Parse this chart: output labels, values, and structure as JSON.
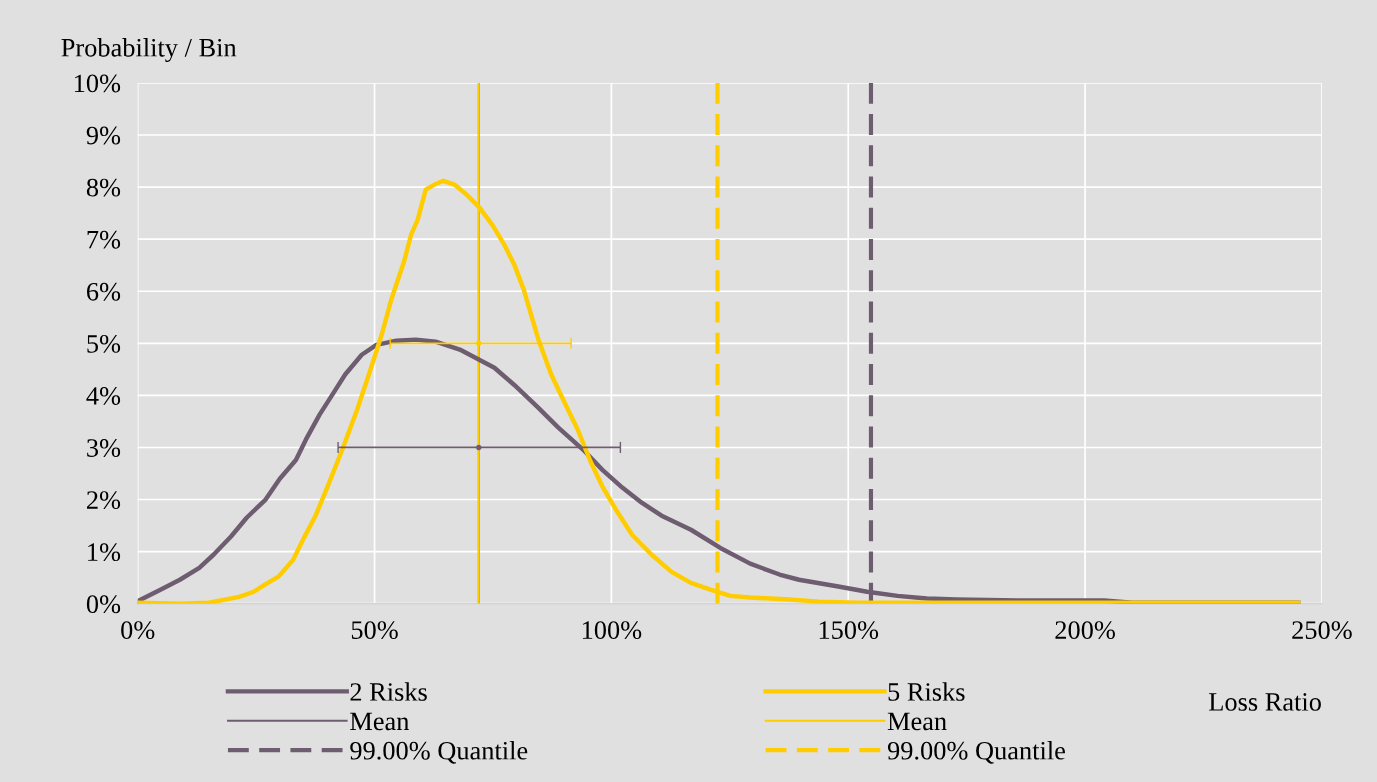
{
  "chart_data": {
    "type": "line",
    "xlabel": "Loss Ratio",
    "ylabel": "Probability / Bin",
    "xlim": [
      0,
      250
    ],
    "xticks": [
      {
        "value": 0,
        "label": "0%"
      },
      {
        "value": 50,
        "label": "50%"
      },
      {
        "value": 100,
        "label": "100%"
      },
      {
        "value": 150,
        "label": "150%"
      },
      {
        "value": 200,
        "label": "200%"
      },
      {
        "value": 250,
        "label": "250%"
      }
    ],
    "ylim": [
      0,
      10
    ],
    "yticks": [
      {
        "value": 0,
        "label": "0%"
      },
      {
        "value": 1,
        "label": "1%"
      },
      {
        "value": 2,
        "label": "2%"
      },
      {
        "value": 3,
        "label": "3%"
      },
      {
        "value": 4,
        "label": "4%"
      },
      {
        "value": 5,
        "label": "5%"
      },
      {
        "value": 6,
        "label": "6%"
      },
      {
        "value": 7,
        "label": "7%"
      },
      {
        "value": 8,
        "label": "8%"
      },
      {
        "value": 9,
        "label": "9%"
      },
      {
        "value": 10,
        "label": "10%"
      }
    ],
    "grid": true,
    "legend": "bottom",
    "marker": "none",
    "line_style": "solid",
    "series": [
      {
        "name": "2 Risks",
        "color": "#6e5c70",
        "x": [
          0,
          4.8,
          8.9,
          13,
          16,
          19.7,
          23,
          27,
          30,
          33.4,
          35.5,
          38.4,
          41,
          43.8,
          47.3,
          50.4,
          54.6,
          58.7,
          62.9,
          68,
          72.2,
          75.3,
          79.5,
          84.6,
          88.8,
          94,
          98.1,
          102.3,
          106.4,
          110.6,
          116.8,
          123,
          129.3,
          135.5,
          139.6,
          147.9,
          154,
          160.4,
          166.6,
          172.8,
          187.3,
          204,
          210,
          245
        ],
        "values": [
          0.05,
          0.27,
          0.46,
          0.69,
          0.94,
          1.29,
          1.65,
          2.0,
          2.4,
          2.76,
          3.15,
          3.63,
          4.0,
          4.4,
          4.78,
          4.97,
          5.05,
          5.07,
          5.03,
          4.88,
          4.68,
          4.53,
          4.2,
          3.76,
          3.38,
          2.96,
          2.57,
          2.23,
          1.94,
          1.69,
          1.42,
          1.07,
          0.77,
          0.56,
          0.46,
          0.33,
          0.23,
          0.15,
          0.1,
          0.08,
          0.06,
          0.06,
          0.02,
          0.02
        ]
      },
      {
        "name": "5 Risks",
        "color": "#ffcc00",
        "x": [
          0,
          8.9,
          15,
          21.4,
          24.5,
          26.6,
          29.7,
          32.8,
          34.9,
          37.6,
          40,
          43.2,
          46.3,
          48.8,
          51.5,
          53.5,
          56.2,
          57.7,
          59.1,
          60.8,
          62.9,
          64.5,
          67,
          69.5,
          72.2,
          74.9,
          77.4,
          79.5,
          81.5,
          84.6,
          87.3,
          89.8,
          92.9,
          95.6,
          98.1,
          101.2,
          104.4,
          108.5,
          112.7,
          116.8,
          120.9,
          125.1,
          129.3,
          137.6,
          143.8,
          152,
          245
        ],
        "values": [
          0.02,
          0,
          0.02,
          0.13,
          0.23,
          0.35,
          0.52,
          0.84,
          1.23,
          1.7,
          2.23,
          2.96,
          3.72,
          4.4,
          5.16,
          5.83,
          6.56,
          7.08,
          7.37,
          7.95,
          8.06,
          8.12,
          8.04,
          7.85,
          7.6,
          7.27,
          6.89,
          6.51,
          6.03,
          5.07,
          4.4,
          3.92,
          3.34,
          2.73,
          2.25,
          1.77,
          1.32,
          0.94,
          0.61,
          0.4,
          0.27,
          0.15,
          0.12,
          0.08,
          0.04,
          0.02,
          0.02
        ]
      },
      {
        "type": "scatter",
        "marker": "circle",
        "color": "#6e5c70",
        "x": [
          72
        ],
        "values": [
          3
        ],
        "xerrors": [
          [
            42.3,
            101.9
          ]
        ]
      },
      {
        "type": "scatter",
        "marker": "circle",
        "color": "#ffcc00",
        "x": [
          72
        ],
        "values": [
          5
        ],
        "xerrors": [
          [
            53.3,
            91.5
          ]
        ]
      }
    ],
    "ref_lines": [
      {
        "axis": "x",
        "value": 72,
        "label": "Mean",
        "color": "#6e5c70",
        "line_style": "solid"
      },
      {
        "axis": "x",
        "value": 154.8,
        "label": "99.00% Quantile",
        "color": "#6e5c70",
        "line_style": "dashed"
      },
      {
        "axis": "x",
        "value": 72,
        "label": "Mean",
        "color": "#ffcc00",
        "line_style": "solid"
      },
      {
        "axis": "x",
        "value": 122.4,
        "label": "99.00% Quantile",
        "color": "#ffcc00",
        "line_style": "dashed"
      }
    ]
  }
}
